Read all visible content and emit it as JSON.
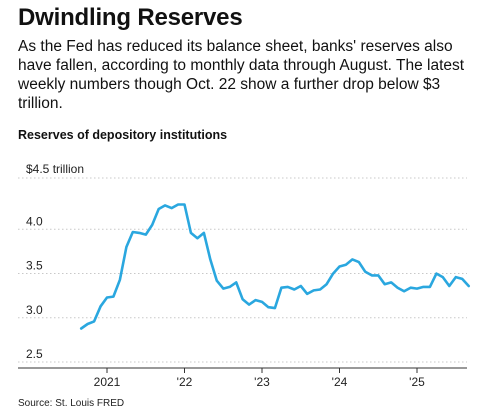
{
  "header": {
    "title": "Dwindling Reserves",
    "subtitle": "As the Fed has reduced its balance sheet, banks' reserves also have fallen, according to monthly data through August. The latest weekly numbers though Oct. 22 show a further drop below $3 trillion."
  },
  "footer": {
    "source": "Source: St. Louis FRED"
  },
  "colors": {
    "line": "#2aa7df",
    "grid": "#c8c8c8",
    "axis": "#333333"
  },
  "chart_data": {
    "type": "line",
    "title": "Reserves of depository institutions",
    "ylabel": "",
    "xlabel": "",
    "ylim": [
      2.5,
      4.5
    ],
    "xlim": [
      2020.0,
      2025.75
    ],
    "grid": true,
    "y_ticks": [
      {
        "value": 4.5,
        "label": "$4.5 trillion"
      },
      {
        "value": 4.0,
        "label": "4.0"
      },
      {
        "value": 3.5,
        "label": "3.5"
      },
      {
        "value": 3.0,
        "label": "3.0"
      },
      {
        "value": 2.5,
        "label": "2.5"
      }
    ],
    "x_ticks": [
      {
        "value": 2021.0,
        "label": "2021"
      },
      {
        "value": 2022.0,
        "label": "'22"
      },
      {
        "value": 2023.0,
        "label": "'23"
      },
      {
        "value": 2024.0,
        "label": "'24"
      },
      {
        "value": 2025.0,
        "label": "'25"
      }
    ],
    "series": [
      {
        "x": [
          2020.667,
          2020.75,
          2020.833,
          2020.917,
          2021.0,
          2021.083,
          2021.167,
          2021.25,
          2021.333,
          2021.417,
          2021.5,
          2021.583,
          2021.667,
          2021.75,
          2021.833,
          2021.917,
          2022.0,
          2022.083,
          2022.167,
          2022.25,
          2022.333,
          2022.417,
          2022.5,
          2022.583,
          2022.667,
          2022.75,
          2022.833,
          2022.917,
          2023.0,
          2023.083,
          2023.167,
          2023.25,
          2023.333,
          2023.417,
          2023.5,
          2023.583,
          2023.667,
          2023.75,
          2023.833,
          2023.917,
          2024.0,
          2024.083,
          2024.167,
          2024.25,
          2024.333,
          2024.417,
          2024.5,
          2024.583,
          2024.667,
          2024.75,
          2024.833,
          2024.917,
          2025.0,
          2025.083,
          2025.167,
          2025.25,
          2025.333,
          2025.417,
          2025.5,
          2025.583,
          2025.667
        ],
        "values": [
          2.8,
          2.85,
          2.88,
          3.05,
          3.15,
          3.16,
          3.35,
          3.72,
          3.89,
          3.88,
          3.86,
          3.97,
          4.15,
          4.19,
          4.16,
          4.2,
          4.2,
          3.88,
          3.82,
          3.88,
          3.58,
          3.34,
          3.25,
          3.27,
          3.32,
          3.13,
          3.07,
          3.12,
          3.1,
          3.04,
          3.03,
          3.26,
          3.27,
          3.24,
          3.28,
          3.19,
          3.23,
          3.24,
          3.3,
          3.42,
          3.5,
          3.52,
          3.58,
          3.55,
          3.44,
          3.4,
          3.4,
          3.3,
          3.32,
          3.26,
          3.22,
          3.26,
          3.25,
          3.27,
          3.27,
          3.42,
          3.38,
          3.28,
          3.38,
          3.36,
          3.28
        ]
      }
    ]
  }
}
